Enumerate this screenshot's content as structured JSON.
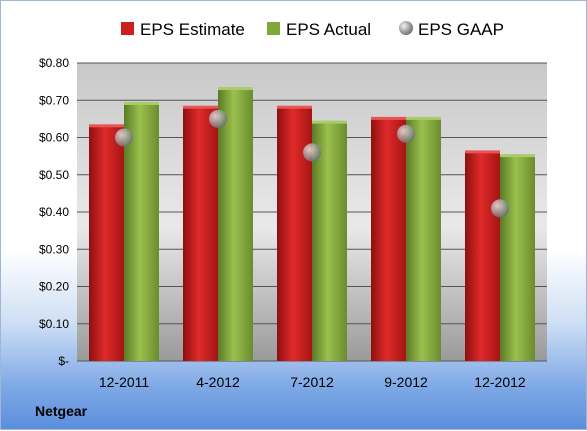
{
  "chart_data": {
    "type": "bar",
    "categories": [
      "12-2011",
      "4-2012",
      "7-2012",
      "9-2012",
      "12-2012"
    ],
    "series": [
      {
        "name": "EPS Estimate",
        "kind": "bar",
        "color": "#cc1f1f",
        "values": [
          0.63,
          0.68,
          0.68,
          0.65,
          0.56
        ]
      },
      {
        "name": "EPS Actual",
        "kind": "bar",
        "color": "#7fa83a",
        "values": [
          0.69,
          0.73,
          0.64,
          0.65,
          0.55
        ]
      },
      {
        "name": "EPS GAAP",
        "kind": "marker",
        "color": "#a9a9a9",
        "values": [
          0.6,
          0.65,
          0.56,
          0.61,
          0.41
        ]
      }
    ],
    "ylim": [
      0,
      0.8
    ],
    "yticks": [
      0,
      0.1,
      0.2,
      0.3,
      0.4,
      0.5,
      0.6,
      0.7,
      0.8
    ],
    "ytick_labels": [
      "$-",
      "$0.10",
      "$0.20",
      "$0.30",
      "$0.40",
      "$0.50",
      "$0.60",
      "$0.70",
      "$0.80"
    ],
    "grid": true,
    "legend_position": "top"
  },
  "footer": {
    "company": "Netgear"
  }
}
